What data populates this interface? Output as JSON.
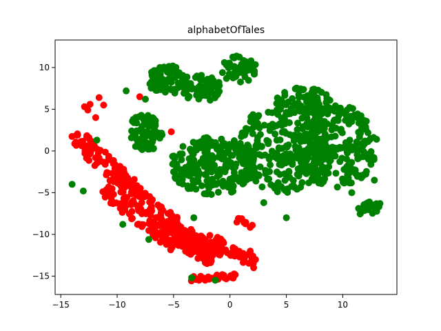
{
  "chart_data": {
    "type": "scatter",
    "title": "alphabetOfTales",
    "xlabel": "",
    "ylabel": "",
    "xlim": [
      -15.5,
      14.8
    ],
    "ylim": [
      -17.2,
      13.3
    ],
    "xticks": [
      -15,
      -10,
      -5,
      0,
      5,
      10
    ],
    "yticks": [
      -15,
      -10,
      -5,
      0,
      5,
      10
    ],
    "xtick_labels": [
      "−15",
      "−10",
      "−5",
      "0",
      "5",
      "10"
    ],
    "ytick_labels": [
      "−15",
      "−10",
      "−5",
      "0",
      "5",
      "10"
    ],
    "grid": false,
    "legend": "none",
    "series": [
      {
        "color": "#ff0000",
        "clusters": [
          {
            "shape": "arc",
            "points": [
              [
                -12.4,
                5.6
              ],
              [
                -12.9,
                5.3
              ],
              [
                -11.6,
                6.4
              ],
              [
                -11.2,
                5.5
              ],
              [
                -11.9,
                4.0
              ],
              [
                -12.6,
                4.9
              ]
            ]
          },
          {
            "shape": "band",
            "start": [
              -13.8,
              2.0
            ],
            "end": [
              -8.0,
              -5.5
            ],
            "width": 1.8,
            "n": 90
          },
          {
            "shape": "band",
            "start": [
              -10.5,
              -4.0
            ],
            "end": [
              -4.0,
              -11.0
            ],
            "width": 3.2,
            "n": 160
          },
          {
            "shape": "band",
            "start": [
              -5.5,
              -9.5
            ],
            "end": [
              -1.0,
              -12.8
            ],
            "width": 2.4,
            "n": 120
          },
          {
            "shape": "blob",
            "center": [
              -1.5,
              -11.3
            ],
            "r": [
              1.0,
              1.3
            ],
            "n": 40
          },
          {
            "shape": "band",
            "start": [
              0.0,
              -11.8
            ],
            "end": [
              2.2,
              -13.4
            ],
            "width": 1.2,
            "n": 30
          },
          {
            "shape": "band",
            "start": [
              -3.5,
              -15.3
            ],
            "end": [
              0.5,
              -15.0
            ],
            "width": 0.6,
            "n": 26
          },
          {
            "shape": "band",
            "start": [
              0.6,
              -8.2
            ],
            "end": [
              2.0,
              -9.0
            ],
            "width": 0.6,
            "n": 10
          },
          {
            "shape": "points",
            "points": [
              [
                -8.0,
                6.5
              ],
              [
                -5.2,
                2.3
              ],
              [
                -13.5,
                1.9
              ],
              [
                -12.5,
                1.6
              ],
              [
                -2.2,
                -15.5
              ],
              [
                -3.0,
                -15.4
              ],
              [
                2.1,
                -14.0
              ],
              [
                1.8,
                -12.0
              ]
            ]
          }
        ]
      },
      {
        "color": "#008000",
        "clusters": [
          {
            "shape": "blob",
            "center": [
              -5.5,
              8.5
            ],
            "r": [
              1.8,
              1.8
            ],
            "n": 80
          },
          {
            "shape": "blob",
            "center": [
              -2.5,
              7.5
            ],
            "r": [
              1.8,
              1.6
            ],
            "n": 70
          },
          {
            "shape": "blob",
            "center": [
              0.8,
              9.8
            ],
            "r": [
              1.6,
              1.6
            ],
            "n": 55
          },
          {
            "shape": "blob",
            "center": [
              -7.5,
              2.2
            ],
            "r": [
              1.6,
              2.3
            ],
            "n": 85
          },
          {
            "shape": "blob",
            "center": [
              -1.5,
              -1.8
            ],
            "r": [
              3.8,
              3.5
            ],
            "n": 240
          },
          {
            "shape": "blob",
            "center": [
              4.8,
              0.5
            ],
            "r": [
              4.0,
              5.5
            ],
            "n": 260
          },
          {
            "shape": "blob",
            "center": [
              9.5,
              0.5
            ],
            "r": [
              3.5,
              5.0
            ],
            "n": 240
          },
          {
            "shape": "blob",
            "center": [
              6.5,
              5.8
            ],
            "r": [
              2.5,
              1.8
            ],
            "n": 70
          },
          {
            "shape": "blob",
            "center": [
              12.3,
              -7.0
            ],
            "r": [
              1.0,
              1.0
            ],
            "n": 22
          },
          {
            "shape": "points",
            "points": [
              [
                -9.2,
                7.2
              ],
              [
                -7.5,
                6.2
              ],
              [
                -14.0,
                -4.0
              ],
              [
                -13.0,
                -4.8
              ],
              [
                -11.8,
                1.3
              ],
              [
                -9.5,
                -8.8
              ],
              [
                -7.2,
                -10.6
              ],
              [
                -3.4,
                -15.2
              ],
              [
                -1.3,
                -15.5
              ],
              [
                -3.2,
                -8.0
              ],
              [
                13.0,
                1.4
              ],
              [
                12.8,
                -3.5
              ],
              [
                3.0,
                -6.2
              ],
              [
                5.0,
                -8.0
              ],
              [
                10.8,
                -5.0
              ],
              [
                13.3,
                -6.3
              ],
              [
                -4.5,
                -3.8
              ],
              [
                -5.0,
                -2.5
              ]
            ]
          }
        ]
      }
    ]
  }
}
